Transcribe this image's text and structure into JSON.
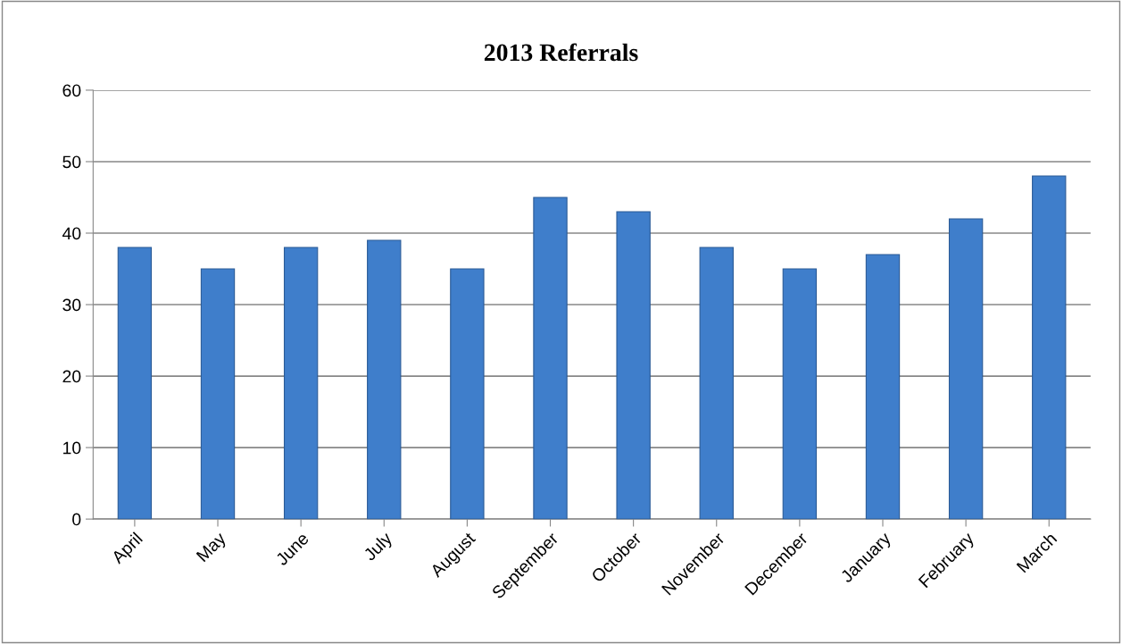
{
  "chart_data": {
    "type": "bar",
    "title": "2013 Referrals",
    "categories": [
      "April",
      "May",
      "June",
      "July",
      "August",
      "September",
      "October",
      "November",
      "December",
      "January",
      "February",
      "March"
    ],
    "values": [
      38,
      35,
      38,
      39,
      35,
      45,
      43,
      38,
      35,
      37,
      42,
      48
    ],
    "color": "#3f7ecb",
    "ylim": [
      0,
      60
    ],
    "yticks": [
      0,
      10,
      20,
      30,
      40,
      50,
      60
    ],
    "grid": "y"
  }
}
